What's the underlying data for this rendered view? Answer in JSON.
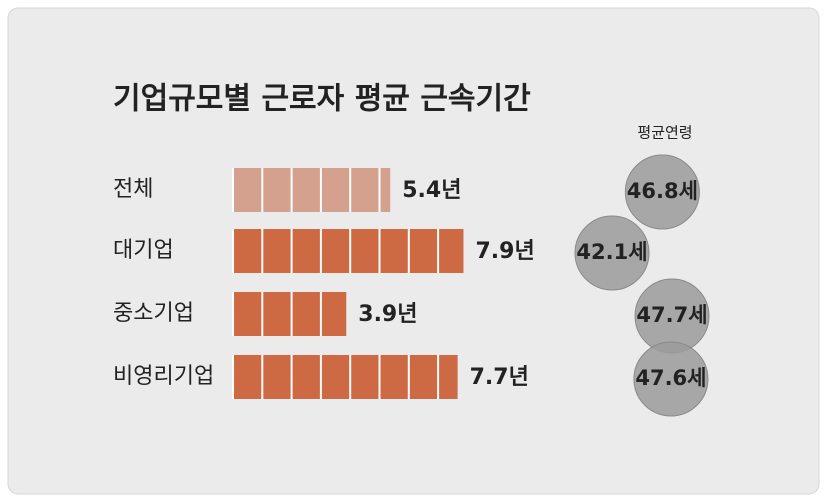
{
  "chart_data": {
    "type": "bar",
    "orientation": "horizontal",
    "title": "기업규모별 근로자 평균 근속기간",
    "categories": [
      "전체",
      "대기업",
      "중소기업",
      "비영리기업"
    ],
    "values": [
      5.4,
      7.9,
      3.9,
      7.7
    ],
    "value_labels": [
      "5.4년",
      "7.9년",
      "3.9년",
      "7.7년"
    ],
    "colors": [
      "#d4a18f",
      "#cd6a44",
      "#cd6a44",
      "#cd6a44"
    ],
    "age": {
      "title": "평균연령",
      "values": [
        46.8,
        42.1,
        47.7,
        47.6
      ],
      "value_labels": [
        "46.8세",
        "42.1세",
        "47.7세",
        "47.6세"
      ],
      "color": "#9b9b9b"
    }
  }
}
